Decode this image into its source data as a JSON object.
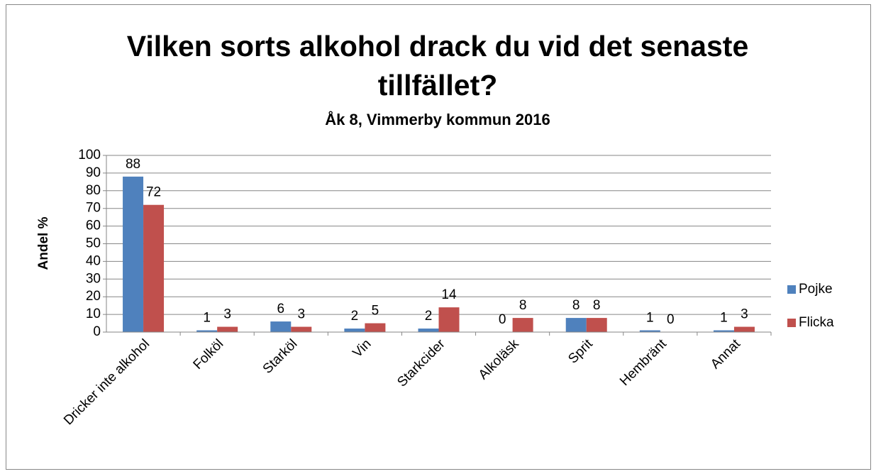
{
  "chart_data": {
    "type": "bar",
    "title": "Vilken sorts alkohol drack du vid det senaste tillfället?",
    "subtitle": "Åk 8, Vimmerby kommun 2016",
    "y_label": "Andel %",
    "categories": [
      "Dricker inte alkohol",
      "Folköl",
      "Starköl",
      "Vin",
      "Starkcider",
      "Alkoläsk",
      "Sprit",
      "Hembränt",
      "Annat"
    ],
    "series": [
      {
        "name": "Pojke",
        "color": "#4f81bd",
        "values": [
          88,
          1,
          6,
          2,
          2,
          0,
          8,
          1,
          1
        ]
      },
      {
        "name": "Flicka",
        "color": "#c0504d",
        "values": [
          72,
          3,
          3,
          5,
          14,
          8,
          8,
          0,
          3
        ]
      }
    ],
    "ylim": [
      0,
      100
    ],
    "yticks": [
      0,
      10,
      20,
      30,
      40,
      50,
      60,
      70,
      80,
      90,
      100
    ],
    "grid": true,
    "legend": "right"
  }
}
